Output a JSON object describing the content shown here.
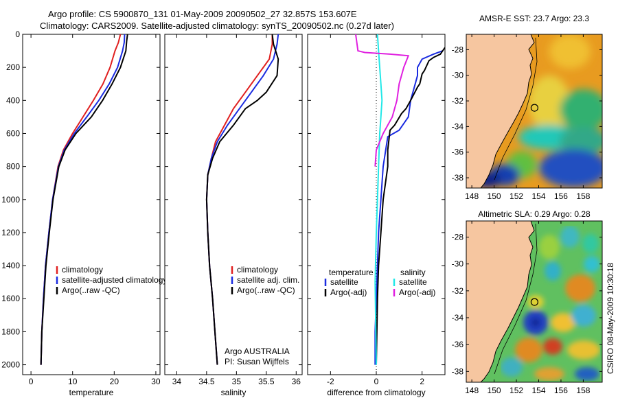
{
  "header": {
    "line1": "Argo profile: CS 5900870_131 01-May-2009 20090502_27 32.857S 153.607E",
    "line2": "Climatology: CARS2009. Satellite-adjusted climatology: synTS_20090502.nc (0.27d later)"
  },
  "footer_stamp": "CSIRO 08-May-2009 10:30:18",
  "colors": {
    "red": "#e02020",
    "blue": "#1a2be0",
    "black": "#000000",
    "cyan": "#22e8e8",
    "magenta": "#e020e0",
    "land": "#f6c6a0",
    "coast": "#000000"
  },
  "chart_data": [
    {
      "type": "line",
      "panel": "temperature",
      "xlabel": "temperature",
      "xlim": [
        -2,
        31
      ],
      "ylim": [
        2060,
        0
      ],
      "xticks": [
        0,
        10,
        20,
        30
      ],
      "yticks": [
        0,
        200,
        400,
        600,
        800,
        1000,
        1200,
        1400,
        1600,
        1800,
        2000
      ],
      "legend": {
        "position": "lower-right",
        "entries": [
          "climatology",
          "satellite-adjusted climatology",
          "Argo(..raw -QC)"
        ]
      },
      "series": [
        {
          "name": "climatology",
          "color": "red",
          "x": [
            21.5,
            21.0,
            20.2,
            19.0,
            17.3,
            15.0,
            12.5,
            10.0,
            7.8,
            6.5,
            5.2,
            4.3,
            3.5,
            3.0,
            2.6,
            2.4
          ],
          "y": [
            0,
            50,
            100,
            200,
            300,
            400,
            500,
            600,
            700,
            800,
            1000,
            1200,
            1400,
            1600,
            1800,
            2000
          ]
        },
        {
          "name": "satellite-adjusted climatology",
          "color": "blue",
          "x": [
            22.5,
            22.4,
            22.0,
            20.8,
            18.8,
            16.3,
            13.4,
            10.4,
            8.0,
            6.6,
            5.2,
            4.3,
            3.5,
            3.0,
            2.6,
            2.4
          ],
          "y": [
            0,
            50,
            100,
            200,
            300,
            400,
            500,
            600,
            700,
            800,
            1000,
            1200,
            1400,
            1600,
            1800,
            2000
          ]
        },
        {
          "name": "Argo(..raw -QC)",
          "color": "black",
          "x": [
            23.2,
            23.0,
            22.8,
            21.5,
            19.5,
            17.2,
            14.5,
            10.8,
            8.2,
            6.7,
            5.3,
            4.4,
            3.6,
            3.1,
            2.6,
            2.4
          ],
          "y": [
            0,
            40,
            100,
            200,
            300,
            400,
            500,
            600,
            700,
            800,
            1000,
            1200,
            1400,
            1600,
            1800,
            2000
          ]
        }
      ]
    },
    {
      "type": "line",
      "panel": "salinity",
      "xlabel": "salinity",
      "xlim": [
        33.8,
        36.1
      ],
      "ylim": [
        2060,
        0
      ],
      "xticks": [
        34,
        34.5,
        35,
        35.5,
        36
      ],
      "xticklabels": [
        "34",
        "34.5",
        "35",
        "35.5",
        "36"
      ],
      "legend": {
        "position": "lower-right",
        "entries": [
          "climatology",
          "satellite adj. clim.",
          "Argo(..raw -QC)"
        ]
      },
      "annotation": {
        "lines": [
          "Argo AUSTRALIA",
          "PI: Susan Wijffels"
        ]
      },
      "series": [
        {
          "name": "climatology",
          "color": "red",
          "x": [
            35.6,
            35.6,
            35.55,
            35.35,
            35.15,
            34.95,
            34.8,
            34.65,
            34.58,
            34.52,
            34.5,
            34.52,
            34.55,
            34.6,
            34.64,
            34.68
          ],
          "y": [
            0,
            60,
            150,
            250,
            350,
            450,
            550,
            650,
            750,
            850,
            1000,
            1200,
            1400,
            1600,
            1800,
            2000
          ]
        },
        {
          "name": "satellite adj. clim.",
          "color": "blue",
          "x": [
            35.7,
            35.68,
            35.62,
            35.45,
            35.25,
            35.05,
            34.85,
            34.68,
            34.58,
            34.52,
            34.5,
            34.52,
            34.55,
            34.6,
            34.64,
            34.68
          ],
          "y": [
            0,
            60,
            150,
            250,
            350,
            450,
            550,
            650,
            750,
            850,
            1000,
            1200,
            1400,
            1600,
            1800,
            2000
          ]
        },
        {
          "name": "Argo(..raw -QC)",
          "color": "black",
          "x": [
            35.6,
            35.62,
            35.7,
            35.68,
            35.5,
            35.35,
            35.15,
            34.95,
            34.72,
            34.6,
            34.52,
            34.5,
            34.52,
            34.55,
            34.6,
            34.64,
            34.68
          ],
          "y": [
            0,
            60,
            150,
            250,
            350,
            400,
            450,
            550,
            650,
            750,
            850,
            1000,
            1200,
            1400,
            1600,
            1800,
            2000
          ]
        }
      ]
    },
    {
      "type": "line",
      "panel": "difference",
      "xlabel": "difference from climatology",
      "xlim": [
        -3,
        3
      ],
      "ylim": [
        2060,
        0
      ],
      "xticks": [
        -2,
        0,
        2
      ],
      "legend": {
        "position": "lower-center",
        "left_title": "temperature",
        "left_entries": [
          "satellite",
          "Argo(-adj)"
        ],
        "right_title": "salinity",
        "right_entries": [
          "satellite",
          "Argo(-adj)"
        ]
      },
      "series": [
        {
          "name": "temperature satellite",
          "color": "blue",
          "x": [
            2.9,
            2.5,
            2.0,
            1.8,
            1.8,
            1.7,
            1.5,
            1.4,
            1.0,
            0.5,
            0.3,
            0.2,
            0.1,
            0.05,
            0.0,
            -0.05,
            -0.05
          ],
          "y": [
            100,
            120,
            150,
            200,
            250,
            300,
            400,
            500,
            580,
            620,
            800,
            1000,
            1200,
            1400,
            1600,
            1800,
            2000
          ]
        },
        {
          "name": "temperature Argo(-adj)",
          "color": "black",
          "x": [
            3.0,
            2.8,
            2.5,
            2.3,
            2.1,
            2.0,
            1.9,
            1.8,
            1.5,
            1.3,
            1.1,
            0.8,
            0.6,
            0.5,
            0.5,
            0.3,
            0.2,
            0.1,
            0.05,
            0.0
          ],
          "y": [
            80,
            120,
            140,
            160,
            220,
            240,
            300,
            320,
            400,
            450,
            480,
            550,
            580,
            700,
            800,
            1000,
            1200,
            1400,
            1600,
            2000
          ]
        },
        {
          "name": "salinity satellite",
          "color": "cyan",
          "x": [
            0.05,
            0.1,
            0.15,
            0.2,
            0.25,
            0.2,
            0.15,
            0.1,
            0.05,
            0.0,
            -0.05,
            0.0
          ],
          "y": [
            0,
            100,
            200,
            300,
            400,
            500,
            600,
            800,
            1000,
            1200,
            1500,
            2000
          ]
        },
        {
          "name": "salinity Argo(-adj)",
          "color": "magenta",
          "x": [
            -0.9,
            -0.8,
            -0.5,
            0.6,
            1.4,
            1.2,
            1.0,
            0.9,
            0.7,
            0.5,
            0.3,
            0.0,
            -0.05
          ],
          "y": [
            0,
            100,
            110,
            120,
            130,
            200,
            300,
            400,
            500,
            550,
            600,
            700,
            800
          ]
        }
      ]
    },
    {
      "type": "heatmap",
      "panel": "AMSR-E SST",
      "title": "AMSR-E SST: 23.7 Argo: 23.3",
      "xticks": [
        148,
        150,
        152,
        154,
        156,
        158
      ],
      "yticks": [
        -28,
        -30,
        -32,
        -34,
        -36,
        -38
      ],
      "xlim": [
        147.5,
        159.7
      ],
      "ylim": [
        -38.8,
        -26.8
      ],
      "float_marker": {
        "lon": 153.607,
        "lat": -32.857
      }
    },
    {
      "type": "heatmap",
      "panel": "Altimetric SLA",
      "title": "Altimetric SLA: 0.29 Argo: 0.28",
      "xticks": [
        148,
        150,
        152,
        154,
        156,
        158
      ],
      "yticks": [
        -28,
        -30,
        -32,
        -34,
        -36,
        -38
      ],
      "xlim": [
        147.5,
        159.7
      ],
      "ylim": [
        -38.8,
        -26.8
      ],
      "float_marker": {
        "lon": 153.607,
        "lat": -32.857
      }
    }
  ]
}
